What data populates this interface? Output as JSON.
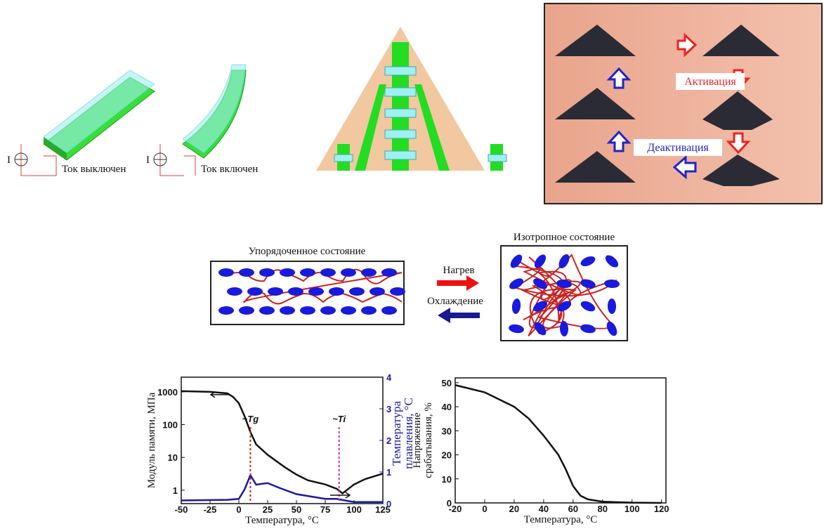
{
  "figure": {
    "source_label": "I",
    "beam_off": "Ток выключен",
    "beam_on": "Ток включен",
    "activation": "Активация",
    "deactivation": "Деактивация",
    "ordered": "Упорядоченное состояние",
    "isotropic": "Изотропное состояние",
    "heating": "Нагрев",
    "cooling": "Охлаждение"
  },
  "chart_data": [
    {
      "type": "line",
      "xlabel": "Температура, °C",
      "ylabel": "Модуль памяти, МПа",
      "y2label": [
        "Температура",
        "плавления, °C"
      ],
      "xlim": [
        -50,
        125
      ],
      "xticks": [
        -50,
        -25,
        0,
        25,
        50,
        75,
        100,
        125
      ],
      "ylog": true,
      "ylim": [
        0.39,
        2800
      ],
      "yticks": [
        1,
        10,
        100,
        1000
      ],
      "y2lim": [
        0,
        4
      ],
      "y2ticks": [
        0,
        1,
        2,
        3,
        4
      ],
      "y2color": "#1a1aa0",
      "series": [
        {
          "color": "#111111",
          "x": [
            -50,
            -25,
            -10,
            -5,
            0,
            5,
            10,
            15,
            25,
            40,
            50,
            60,
            75,
            85,
            90,
            100,
            110,
            125
          ],
          "values": [
            1050,
            1000,
            900,
            700,
            450,
            180,
            60,
            25,
            12,
            5,
            3,
            2,
            1.5,
            1.1,
            0.8,
            1.5,
            2.2,
            3.2
          ]
        },
        {
          "axis": "y2",
          "color": "#1a1aa0",
          "x": [
            -50,
            -10,
            0,
            5,
            10,
            15,
            25,
            35,
            50,
            75,
            85,
            95,
            100,
            125
          ],
          "values": [
            0.1,
            0.12,
            0.15,
            0.45,
            0.9,
            0.6,
            0.65,
            0.5,
            0.3,
            0.15,
            0.15,
            0.08,
            0.05,
            0.05
          ]
        }
      ],
      "annotations": [
        {
          "text": "~Tg",
          "x": 10,
          "color": "#cc2222"
        },
        {
          "text": "~Ti",
          "x": 87,
          "color": "#cc22cc"
        }
      ]
    },
    {
      "type": "line",
      "xlabel": "Температура, °C",
      "ylabel": [
        "Напряжение",
        "срабатывания, %"
      ],
      "xlim": [
        -20,
        123
      ],
      "xticks": [
        -20,
        0,
        20,
        40,
        60,
        80,
        100,
        120
      ],
      "ylim": [
        0,
        52
      ],
      "yticks": [
        0,
        10,
        20,
        30,
        40,
        50
      ],
      "series": [
        {
          "color": "#111111",
          "x": [
            -20,
            0,
            20,
            30,
            40,
            50,
            55,
            60,
            65,
            70,
            80,
            100,
            120
          ],
          "values": [
            49,
            46,
            40,
            35,
            28,
            20,
            14,
            7,
            3,
            1.5,
            0.5,
            0.1,
            0
          ]
        }
      ]
    }
  ]
}
